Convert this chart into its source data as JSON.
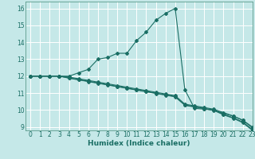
{
  "xlabel": "Humidex (Indice chaleur)",
  "xlim": [
    -0.5,
    23
  ],
  "ylim": [
    8.8,
    16.4
  ],
  "xticks": [
    0,
    1,
    2,
    3,
    4,
    5,
    6,
    7,
    8,
    9,
    10,
    11,
    12,
    13,
    14,
    15,
    16,
    17,
    18,
    19,
    20,
    21,
    22,
    23
  ],
  "yticks": [
    9,
    10,
    11,
    12,
    13,
    14,
    15,
    16
  ],
  "bg_color": "#c5e8e8",
  "grid_color": "#ffffff",
  "line_color": "#1a6e64",
  "curves": {
    "upper": {
      "x": [
        0,
        1,
        2,
        3,
        4,
        5,
        6,
        7,
        8,
        9,
        10,
        11,
        12,
        13,
        14,
        15,
        16,
        17,
        18,
        19,
        20,
        21,
        22,
        23
      ],
      "y": [
        12,
        12,
        12,
        12,
        12,
        12.2,
        12.4,
        13.0,
        13.1,
        13.35,
        13.35,
        14.1,
        14.6,
        15.3,
        15.7,
        16.0,
        11.2,
        10.1,
        10.05,
        10.0,
        9.8,
        9.65,
        9.4,
        8.95
      ]
    },
    "lower1": {
      "x": [
        0,
        1,
        2,
        3,
        4,
        5,
        6,
        7,
        8,
        9,
        10,
        11,
        12,
        13,
        14,
        15,
        16,
        17,
        18,
        19,
        20,
        21,
        22,
        23
      ],
      "y": [
        12,
        12,
        12,
        12,
        11.95,
        11.85,
        11.75,
        11.65,
        11.55,
        11.45,
        11.35,
        11.25,
        11.15,
        11.05,
        10.95,
        10.85,
        10.35,
        10.25,
        10.15,
        10.05,
        9.85,
        9.65,
        9.4,
        9.0
      ]
    },
    "lower2": {
      "x": [
        0,
        1,
        2,
        3,
        4,
        5,
        6,
        7,
        8,
        9,
        10,
        11,
        12,
        13,
        14,
        15,
        16,
        17,
        18,
        19,
        20,
        21,
        22,
        23
      ],
      "y": [
        12,
        12,
        12,
        12,
        11.9,
        11.8,
        11.7,
        11.6,
        11.5,
        11.4,
        11.3,
        11.2,
        11.1,
        11.0,
        10.9,
        10.8,
        10.3,
        10.2,
        10.1,
        10.0,
        9.75,
        9.55,
        9.3,
        8.85
      ]
    },
    "lower3": {
      "x": [
        0,
        1,
        2,
        3,
        4,
        5,
        6,
        7,
        8,
        9,
        10,
        11,
        12,
        13,
        14,
        15,
        16,
        17,
        18,
        19,
        20,
        21,
        22,
        23
      ],
      "y": [
        12,
        12,
        12,
        12,
        11.88,
        11.78,
        11.68,
        11.58,
        11.48,
        11.38,
        11.28,
        11.18,
        11.08,
        10.98,
        10.88,
        10.78,
        10.28,
        10.18,
        10.08,
        9.98,
        9.72,
        9.52,
        9.25,
        8.8
      ]
    }
  }
}
